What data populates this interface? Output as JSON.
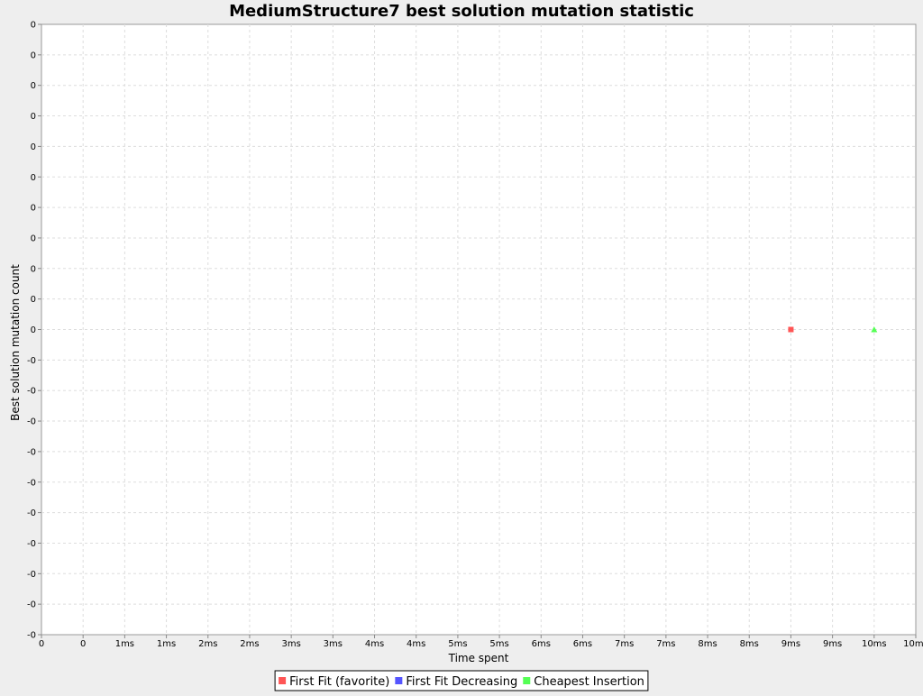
{
  "chart_data": {
    "type": "scatter",
    "title": "MediumStructure7 best solution mutation statistic",
    "xlabel": "Time spent",
    "ylabel": "Best solution mutation count",
    "x_unit": "ms",
    "xlim": [
      0,
      10.5
    ],
    "ylim": [
      -1,
      1
    ],
    "x_ticks": [
      "0",
      "0",
      "1ms",
      "1ms",
      "2ms",
      "2ms",
      "3ms",
      "3ms",
      "4ms",
      "4ms",
      "5ms",
      "5ms",
      "6ms",
      "6ms",
      "7ms",
      "7ms",
      "8ms",
      "8ms",
      "9ms",
      "9ms",
      "10ms",
      "10ms"
    ],
    "y_ticks": [
      "0",
      "0",
      "0",
      "0",
      "0",
      "0",
      "0",
      "0",
      "0",
      "0",
      "0",
      "-0",
      "-0",
      "-0",
      "-0",
      "-0",
      "-0",
      "-0",
      "-0",
      "-0",
      "-0"
    ],
    "grid": true,
    "legend_position": "bottom",
    "series": [
      {
        "name": "First Fit (favorite)",
        "color": "#ff5555",
        "marker": "square",
        "points": [
          {
            "x": 9,
            "y": 0
          }
        ]
      },
      {
        "name": "First Fit Decreasing",
        "color": "#5555ff",
        "marker": "circle",
        "points": []
      },
      {
        "name": "Cheapest Insertion",
        "color": "#55ff55",
        "marker": "triangle",
        "points": [
          {
            "x": 10,
            "y": 0
          }
        ]
      }
    ]
  }
}
